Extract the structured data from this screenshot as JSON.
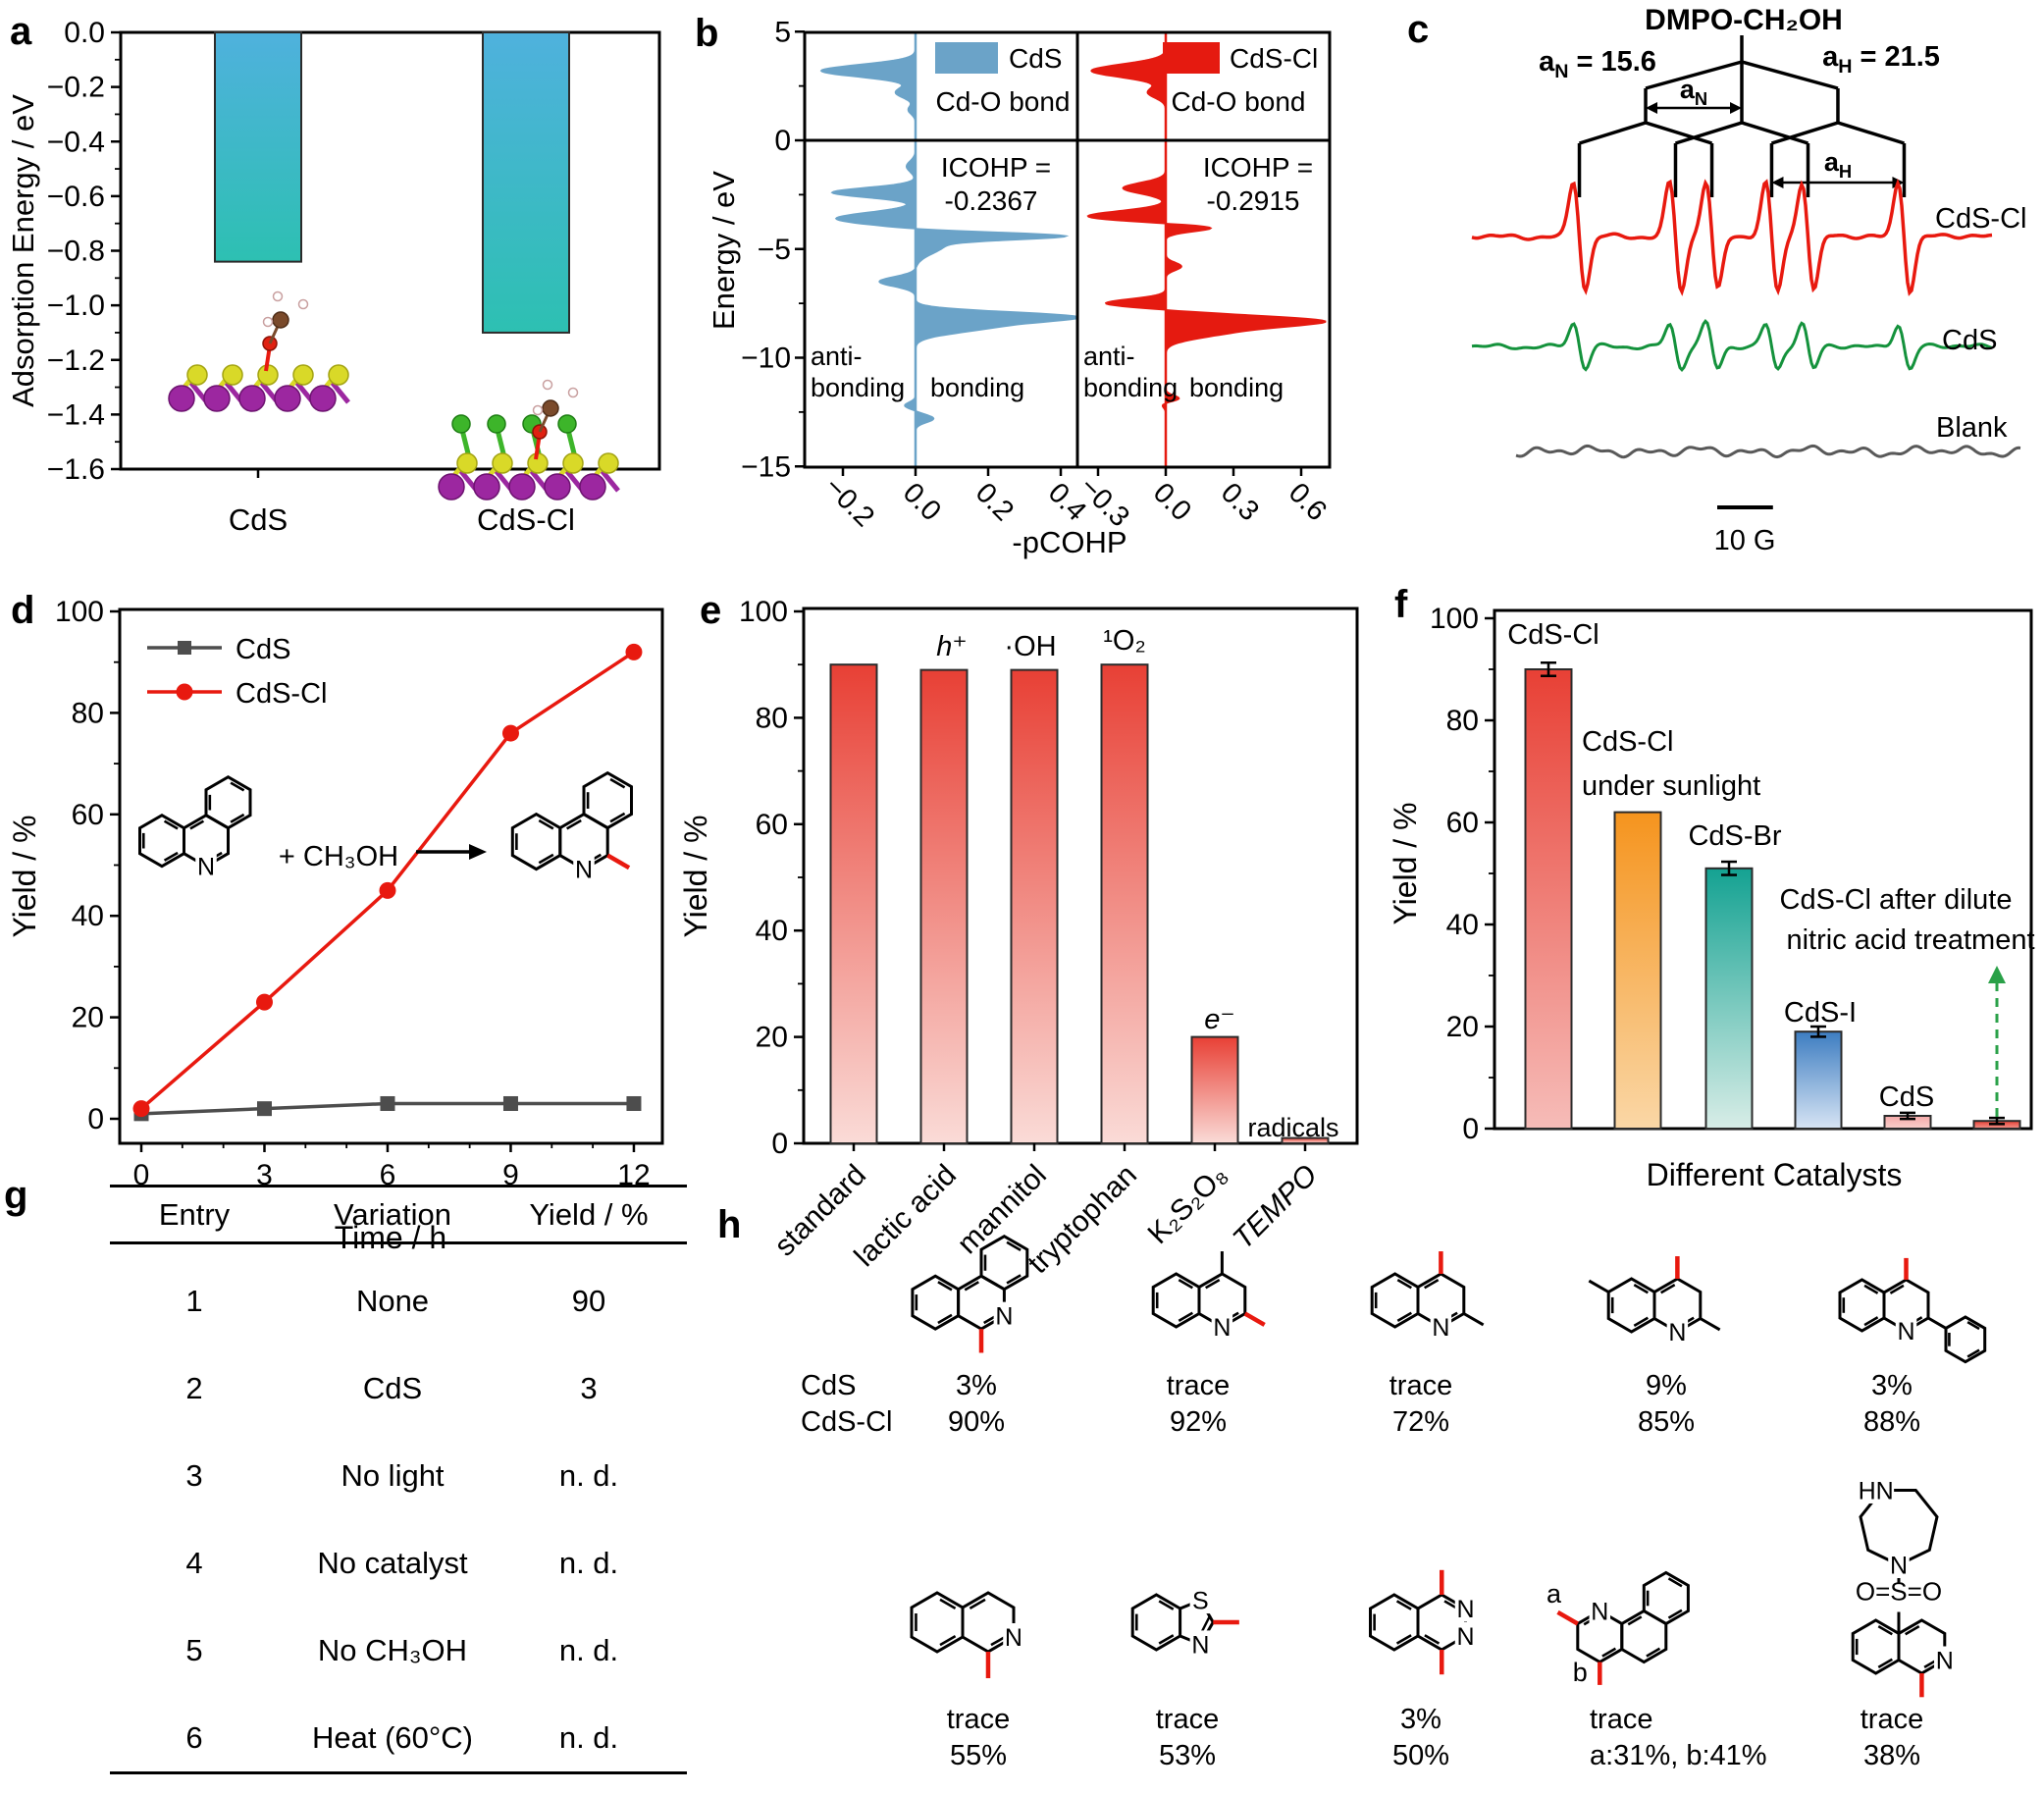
{
  "panel_labels": {
    "a": "a",
    "b": "b",
    "c": "c",
    "d": "d",
    "e": "e",
    "f": "f",
    "g": "g",
    "h": "h"
  },
  "chart_data": [
    {
      "id": "a",
      "type": "bar",
      "ylabel": "Adsorption Energy / eV",
      "categories": [
        "CdS",
        "CdS-Cl"
      ],
      "values": [
        -0.84,
        -1.1
      ],
      "ylim": [
        -1.6,
        0.0
      ],
      "ytick_step": 0.2,
      "bar_color_top": "#4fb1dd",
      "bar_color_bottom": "#2dc0b2"
    },
    {
      "id": "b",
      "type": "area",
      "ylabel": "Energy / eV",
      "xlabel": "-pCOHP",
      "ylim": [
        -15,
        5
      ],
      "yticks": [
        5,
        0,
        -5,
        -10,
        -15
      ],
      "anti_label": "anti-",
      "bonding_label": "bonding",
      "subplots": [
        {
          "legend": "CdS",
          "sublabel": "Cd-O bond",
          "icohp_line1": "ICOHP =",
          "icohp_line2": "-0.2367",
          "color": "#6ba3c8",
          "xticks": [
            -0.2,
            0.0,
            0.2,
            0.4
          ],
          "peaks": [
            [
              3.2,
              -0.26,
              0.28
            ],
            [
              2.2,
              -0.055,
              0.25
            ],
            [
              1.4,
              -0.02,
              0.2
            ],
            [
              -1.2,
              -0.025,
              0.25
            ],
            [
              -2.4,
              -0.23,
              0.22
            ],
            [
              -3.6,
              -0.22,
              0.28
            ],
            [
              -4.4,
              0.37,
              0.16
            ],
            [
              -4.8,
              0.08,
              0.4
            ],
            [
              -6.5,
              -0.1,
              0.22
            ],
            [
              -8.1,
              0.38,
              0.22
            ],
            [
              -8.55,
              0.2,
              0.3
            ],
            [
              -12.2,
              -0.03,
              0.15
            ],
            [
              -12.8,
              0.05,
              0.18
            ]
          ]
        },
        {
          "legend": "CdS-Cl",
          "sublabel": "Cd-O bond",
          "icohp_line1": "ICOHP =",
          "icohp_line2": "-0.2915",
          "color": "#e51a10",
          "xticks": [
            -0.3,
            0.0,
            0.3,
            0.6
          ],
          "peaks": [
            [
              3.2,
              -0.33,
              0.3
            ],
            [
              2.2,
              -0.08,
              0.25
            ],
            [
              -2.2,
              -0.19,
              0.25
            ],
            [
              -3.5,
              -0.35,
              0.25
            ],
            [
              -4.0,
              0.24,
              0.18
            ],
            [
              -5.8,
              0.07,
              0.18
            ],
            [
              -7.5,
              -0.27,
              0.2
            ],
            [
              -8.3,
              0.64,
              0.25
            ],
            [
              -8.8,
              0.25,
              0.3
            ],
            [
              -11.9,
              0.07,
              0.15
            ],
            [
              -12.1,
              -0.03,
              0.15
            ]
          ]
        }
      ]
    },
    {
      "id": "c",
      "type": "line",
      "title": "DMPO-CH₂OH",
      "aN": 15.6,
      "aH": 21.5,
      "aN_text": " = 15.6",
      "aH_text": " = 21.5",
      "traces": [
        {
          "name": "CdS-Cl",
          "color": "#e8190f",
          "amplitude": 55
        },
        {
          "name": "CdS",
          "color": "#14923c",
          "amplitude": 23
        },
        {
          "name": "Blank",
          "color": "#595959",
          "amplitude": 0
        }
      ],
      "scalebar": "10 G"
    },
    {
      "id": "d",
      "type": "line",
      "xlabel": "Time / h",
      "ylabel": "Yield / %",
      "x": [
        0,
        3,
        6,
        9,
        12
      ],
      "xticks": [
        0,
        3,
        6,
        9,
        12
      ],
      "yticks": [
        0,
        20,
        40,
        60,
        80,
        100
      ],
      "ylim": [
        0,
        100
      ],
      "series": [
        {
          "name": "CdS",
          "color": "#4d4d4d",
          "marker": "square",
          "values": [
            1,
            2,
            3,
            3,
            3
          ]
        },
        {
          "name": "CdS-Cl",
          "color": "#e8190f",
          "marker": "circle",
          "values": [
            2,
            23,
            45,
            76,
            92
          ]
        }
      ],
      "reaction_label": "+ CH₃OH"
    },
    {
      "id": "e",
      "type": "bar",
      "ylabel": "Yield / %",
      "ylim": [
        0,
        100
      ],
      "yticks": [
        0,
        20,
        40,
        60,
        80,
        100
      ],
      "categories": [
        "standard",
        "lactic acid",
        "mannitol",
        "tryptophan",
        "K₂S₂O₈",
        "TEMPO"
      ],
      "values": [
        90,
        89,
        89,
        90,
        20,
        1
      ],
      "annotations": [
        "",
        "h⁺",
        "·OH",
        "¹O₂",
        "e⁻",
        "radicals"
      ],
      "bar_color_top": "#e84035",
      "bar_color_bottom": "#fadbd7"
    },
    {
      "id": "f",
      "type": "bar",
      "xlabel": "Different Catalysts",
      "ylabel": "Yield / %",
      "ylim": [
        0,
        100
      ],
      "yticks": [
        0,
        20,
        40,
        60,
        80,
        100
      ],
      "categories": [
        "CdS-Cl",
        "CdS-Cl under sunlight",
        "CdS-Br",
        "CdS-I",
        "CdS",
        "CdS-Cl after dilute nitric acid treatment"
      ],
      "values": [
        90,
        62,
        51,
        19,
        2.5,
        1.5
      ],
      "errors": [
        1.3,
        0,
        1.3,
        1,
        0.6,
        0.6
      ],
      "bar_labels": [
        [
          "CdS-Cl"
        ],
        [
          "CdS-Cl",
          "under sunlight"
        ],
        [
          "CdS-Br"
        ],
        [
          "CdS-I"
        ],
        [
          "CdS"
        ],
        [
          "CdS-Cl after dilute",
          "nitric acid treatment"
        ]
      ],
      "bar_colors": [
        [
          "#e84035",
          "#f6bcb8"
        ],
        [
          "#f5941e",
          "#fad7a6"
        ],
        [
          "#14a292",
          "#d8ede7"
        ],
        [
          "#3d7dc1",
          "#d7e4f4"
        ],
        [
          "#f5a9a9",
          "#f8cfcb"
        ],
        [
          "#e84035",
          "#f0958d"
        ]
      ],
      "arrow_color": "#2aa148"
    }
  ],
  "table_g": {
    "headers": [
      "Entry",
      "Variation",
      "Yield / %"
    ],
    "rows": [
      [
        "1",
        "None",
        "90"
      ],
      [
        "2",
        "CdS",
        "3"
      ],
      [
        "3",
        "No light",
        "n. d."
      ],
      [
        "4",
        "No catalyst",
        "n. d."
      ],
      [
        "5",
        "No CH₃OH",
        "n. d."
      ],
      [
        "6",
        "Heat (60°C)",
        "n. d."
      ]
    ]
  },
  "panel_h": {
    "row_labels": [
      "CdS",
      "CdS-Cl"
    ],
    "row1": [
      {
        "cds": "3%",
        "cdscl": "90%"
      },
      {
        "cds": "trace",
        "cdscl": "92%"
      },
      {
        "cds": "trace",
        "cdscl": "72%"
      },
      {
        "cds": "9%",
        "cdscl": "85%"
      },
      {
        "cds": "3%",
        "cdscl": "88%"
      }
    ],
    "row2": [
      {
        "cds": "trace",
        "cdscl": "55%"
      },
      {
        "cds": "trace",
        "cdscl": "53%"
      },
      {
        "cds": "3%",
        "cdscl": "50%"
      },
      {
        "cds": "trace",
        "cdscl": "a:31%, b:41%"
      },
      {
        "cds": "trace",
        "cdscl": "38%"
      }
    ]
  }
}
